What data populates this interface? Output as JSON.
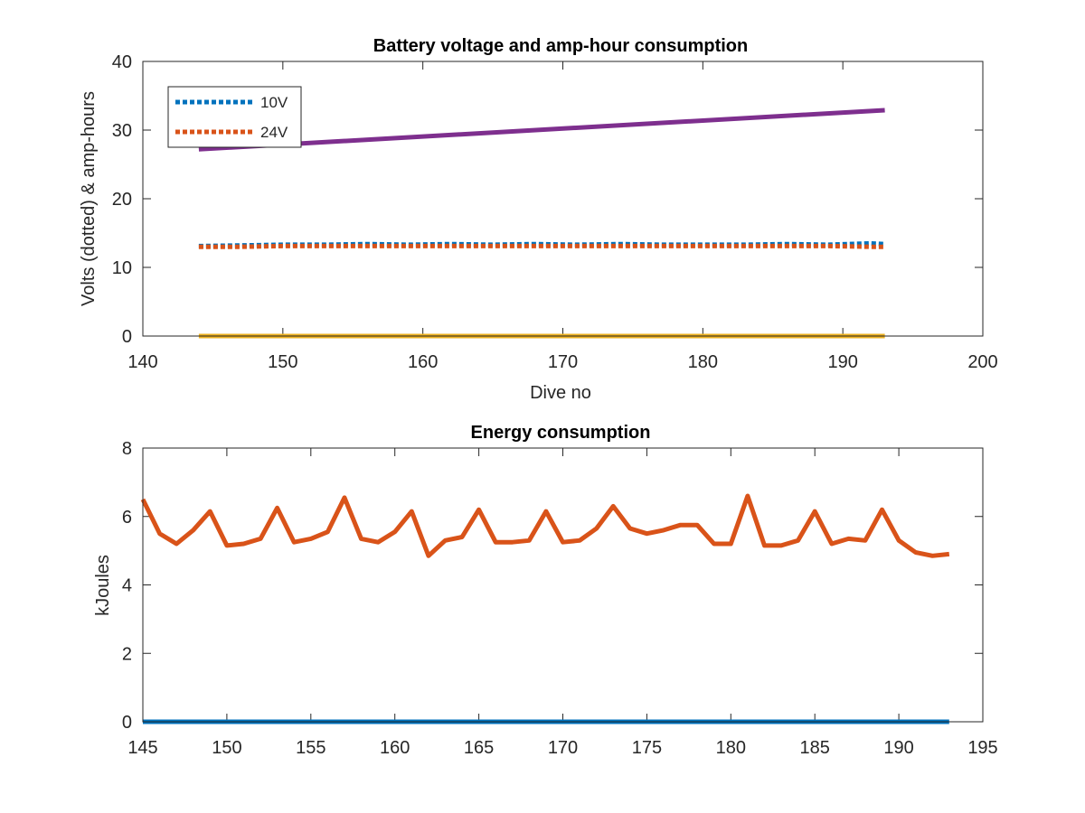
{
  "chart_data": [
    {
      "type": "line",
      "title": "Battery voltage and amp-hour consumption",
      "xlabel": "Dive no",
      "ylabel": "Volts (dotted) & amp-hours",
      "xlim": [
        140,
        200
      ],
      "ylim": [
        0,
        40
      ],
      "xticks": [
        "140",
        "150",
        "160",
        "170",
        "180",
        "190",
        "200"
      ],
      "yticks": [
        "0",
        "10",
        "20",
        "30",
        "40"
      ],
      "grid": false,
      "legend_position": "top-left",
      "series": [
        {
          "name": "10V",
          "style": "dotted",
          "color": "#0072BD",
          "x": [
            144,
            147,
            150,
            153,
            156,
            159,
            162,
            165,
            168,
            171,
            174,
            177,
            180,
            183,
            186,
            189,
            192,
            193
          ],
          "y": [
            13.1,
            13.2,
            13.3,
            13.3,
            13.4,
            13.3,
            13.4,
            13.3,
            13.4,
            13.3,
            13.4,
            13.3,
            13.3,
            13.3,
            13.4,
            13.3,
            13.5,
            13.4
          ]
        },
        {
          "name": "24V",
          "style": "dotted",
          "color": "#D95319",
          "x": [
            144,
            147,
            150,
            153,
            156,
            159,
            162,
            165,
            168,
            171,
            174,
            177,
            180,
            183,
            186,
            189,
            192,
            193
          ],
          "y": [
            13.0,
            13.0,
            13.1,
            13.1,
            13.1,
            13.1,
            13.1,
            13.1,
            13.1,
            13.1,
            13.1,
            13.1,
            13.1,
            13.1,
            13.1,
            13.1,
            13.0,
            13.0
          ]
        },
        {
          "style": "solid",
          "color": "#EDB120",
          "x": [
            144,
            193
          ],
          "y": [
            0,
            0
          ]
        },
        {
          "style": "solid",
          "color": "#7E2F8E",
          "x": [
            144,
            193
          ],
          "y": [
            27.2,
            32.9
          ]
        }
      ]
    },
    {
      "type": "line",
      "title": "Energy consumption",
      "xlabel": "",
      "ylabel": "kJoules",
      "xlim": [
        145,
        195
      ],
      "ylim": [
        0,
        8
      ],
      "xticks": [
        "145",
        "150",
        "155",
        "160",
        "165",
        "170",
        "175",
        "180",
        "185",
        "190",
        "195"
      ],
      "yticks": [
        "0",
        "2",
        "4",
        "6",
        "8"
      ],
      "grid": false,
      "series": [
        {
          "style": "solid",
          "color": "#0072BD",
          "x": [
            145,
            193
          ],
          "y": [
            0,
            0
          ]
        },
        {
          "style": "solid",
          "color": "#D95319",
          "x": [
            145,
            146,
            147,
            148,
            149,
            150,
            151,
            152,
            153,
            154,
            155,
            156,
            157,
            158,
            159,
            160,
            161,
            162,
            163,
            164,
            165,
            166,
            167,
            168,
            169,
            170,
            171,
            172,
            173,
            174,
            175,
            176,
            177,
            178,
            179,
            180,
            181,
            182,
            183,
            184,
            185,
            186,
            187,
            188,
            189,
            190,
            191,
            192,
            193
          ],
          "y": [
            6.5,
            5.5,
            5.2,
            5.6,
            6.15,
            5.15,
            5.2,
            5.35,
            6.25,
            5.25,
            5.35,
            5.55,
            6.55,
            5.35,
            5.25,
            5.55,
            6.15,
            4.85,
            5.3,
            5.4,
            6.2,
            5.25,
            5.25,
            5.3,
            6.15,
            5.25,
            5.3,
            5.65,
            6.3,
            5.65,
            5.5,
            5.6,
            5.75,
            5.75,
            5.2,
            5.2,
            6.6,
            5.15,
            5.15,
            5.3,
            6.15,
            5.2,
            5.35,
            5.3,
            6.2,
            5.3,
            4.95,
            4.85,
            4.9
          ]
        }
      ]
    }
  ]
}
